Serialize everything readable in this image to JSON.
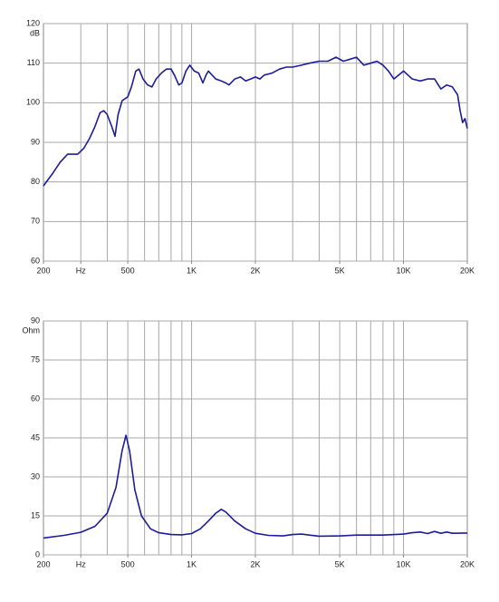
{
  "chart_data": [
    {
      "type": "line",
      "log_x": true,
      "grid": true,
      "color": "#1c1c9c",
      "y_unit": "dB",
      "xlim": [
        200,
        20000
      ],
      "xticks": [
        {
          "value": 200,
          "label": "200"
        },
        {
          "value": 300,
          "label": "Hz"
        },
        {
          "value": 500,
          "label": "500"
        },
        {
          "value": 1000,
          "label": "1K"
        },
        {
          "value": 2000,
          "label": "2K"
        },
        {
          "value": 5000,
          "label": "5K"
        },
        {
          "value": 10000,
          "label": "10K"
        },
        {
          "value": 20000,
          "label": "20K"
        }
      ],
      "xgrid": [
        300,
        400,
        500,
        600,
        700,
        800,
        900,
        1000,
        2000,
        3000,
        4000,
        5000,
        6000,
        7000,
        8000,
        9000,
        10000
      ],
      "ylim": [
        60,
        120
      ],
      "yticks": [
        60,
        70,
        80,
        90,
        100,
        110,
        120
      ],
      "x": [
        200,
        220,
        240,
        260,
        290,
        310,
        330,
        350,
        370,
        385,
        400,
        420,
        435,
        450,
        470,
        500,
        520,
        545,
        565,
        590,
        620,
        650,
        680,
        720,
        760,
        800,
        830,
        870,
        900,
        940,
        980,
        1030,
        1080,
        1130,
        1170,
        1200,
        1250,
        1300,
        1380,
        1450,
        1500,
        1600,
        1700,
        1800,
        1900,
        2000,
        2100,
        2200,
        2400,
        2600,
        2800,
        3000,
        3300,
        3600,
        4000,
        4400,
        4800,
        5200,
        5600,
        6000,
        6500,
        7000,
        7500,
        8000,
        8500,
        9000,
        9500,
        10000,
        10500,
        11000,
        12000,
        13000,
        14000,
        15000,
        16000,
        17000,
        18000,
        18500,
        19000,
        19500,
        20000
      ],
      "values": [
        79,
        82,
        85,
        87,
        87,
        88.5,
        91,
        94,
        97.5,
        98,
        97,
        94,
        91.5,
        97,
        100.5,
        101.5,
        104,
        108,
        108.5,
        106,
        104.5,
        104,
        106,
        107.5,
        108.5,
        108.5,
        107,
        104.5,
        105,
        108,
        109.5,
        108,
        107.5,
        105,
        107,
        108,
        107,
        106,
        105.5,
        105,
        104.5,
        106,
        106.5,
        105.5,
        106,
        106.5,
        106,
        107,
        107.5,
        108.5,
        109,
        109,
        109.5,
        110,
        110.5,
        110.5,
        111.5,
        110.5,
        111,
        111.5,
        109.5,
        110,
        110.5,
        109.5,
        108,
        106,
        107,
        108,
        107,
        106,
        105.5,
        106,
        106,
        103.5,
        104.5,
        104,
        102,
        98,
        95,
        96,
        93.5
      ]
    },
    {
      "type": "line",
      "log_x": true,
      "grid": true,
      "color": "#1c1c9c",
      "y_unit": "Ohm",
      "xlim": [
        200,
        20000
      ],
      "xticks": [
        {
          "value": 200,
          "label": "200"
        },
        {
          "value": 300,
          "label": "Hz"
        },
        {
          "value": 500,
          "label": "500"
        },
        {
          "value": 1000,
          "label": "1K"
        },
        {
          "value": 2000,
          "label": "2K"
        },
        {
          "value": 5000,
          "label": "5K"
        },
        {
          "value": 10000,
          "label": "10K"
        },
        {
          "value": 20000,
          "label": "20K"
        }
      ],
      "xgrid": [
        300,
        400,
        500,
        600,
        700,
        800,
        900,
        1000,
        2000,
        3000,
        4000,
        5000,
        6000,
        7000,
        8000,
        9000,
        10000
      ],
      "ylim": [
        0,
        90
      ],
      "yticks": [
        0,
        15,
        30,
        45,
        60,
        75,
        90
      ],
      "x": [
        200,
        250,
        300,
        350,
        400,
        440,
        470,
        490,
        510,
        540,
        580,
        640,
        700,
        800,
        900,
        1000,
        1100,
        1200,
        1300,
        1380,
        1450,
        1600,
        1800,
        2000,
        2300,
        2700,
        3000,
        3300,
        3600,
        4000,
        5000,
        6000,
        7000,
        8000,
        10000,
        11000,
        12000,
        13000,
        14000,
        15000,
        16000,
        17000,
        20000
      ],
      "values": [
        6.5,
        7.5,
        8.7,
        11,
        16,
        26,
        40,
        46,
        40,
        25,
        15,
        10,
        8.5,
        7.8,
        7.7,
        8.2,
        10,
        13,
        16,
        17.5,
        16.5,
        13,
        10,
        8.3,
        7.5,
        7.3,
        7.8,
        8,
        7.6,
        7.2,
        7.3,
        7.6,
        7.6,
        7.6,
        8,
        8.5,
        8.8,
        8.2,
        9,
        8.3,
        8.8,
        8.3,
        8.4
      ]
    }
  ]
}
